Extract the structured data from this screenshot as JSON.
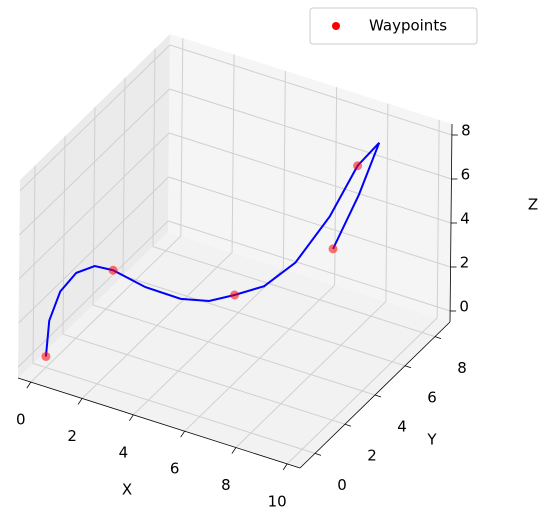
{
  "chart_data": {
    "type": "line3d",
    "xlabel": "X",
    "ylabel": "Y",
    "zlabel": "Z",
    "xlim": [
      -0.5,
      10.5
    ],
    "ylim": [
      -1,
      9
    ],
    "zlim": [
      -0.5,
      8.5
    ],
    "xticks": [
      0,
      2,
      4,
      6,
      8,
      10
    ],
    "yticks": [
      0,
      2,
      4,
      6,
      8
    ],
    "zticks": [
      0,
      2,
      4,
      6,
      8
    ],
    "grid": true,
    "legend": "upper right",
    "series": [
      {
        "kind": "line",
        "color": "#0000ff",
        "x": [
          0,
          0,
          0.3,
          0.8,
          1.4,
          2,
          2.8,
          3.6,
          4.3,
          5,
          5.8,
          6.6,
          7.4,
          8,
          8.6,
          7.6,
          6.5
        ],
        "y": [
          0,
          0.2,
          0.4,
          0.6,
          0.8,
          1,
          1.8,
          2.8,
          3.5,
          4,
          4.6,
          5.3,
          6.2,
          7,
          7.4,
          7.8,
          8
        ],
        "z": [
          0,
          1.5,
          2.8,
          3.7,
          4.1,
          4,
          3,
          2.1,
          1.8,
          2,
          2.3,
          3.2,
          5,
          7,
          8,
          5,
          2
        ]
      },
      {
        "kind": "scatter",
        "name": "Waypoints",
        "color": "#ff0000",
        "x": [
          0,
          2,
          5,
          8,
          6.5
        ],
        "y": [
          0,
          1,
          4,
          7,
          8
        ],
        "z": [
          0,
          4,
          2,
          7,
          2
        ]
      }
    ]
  }
}
